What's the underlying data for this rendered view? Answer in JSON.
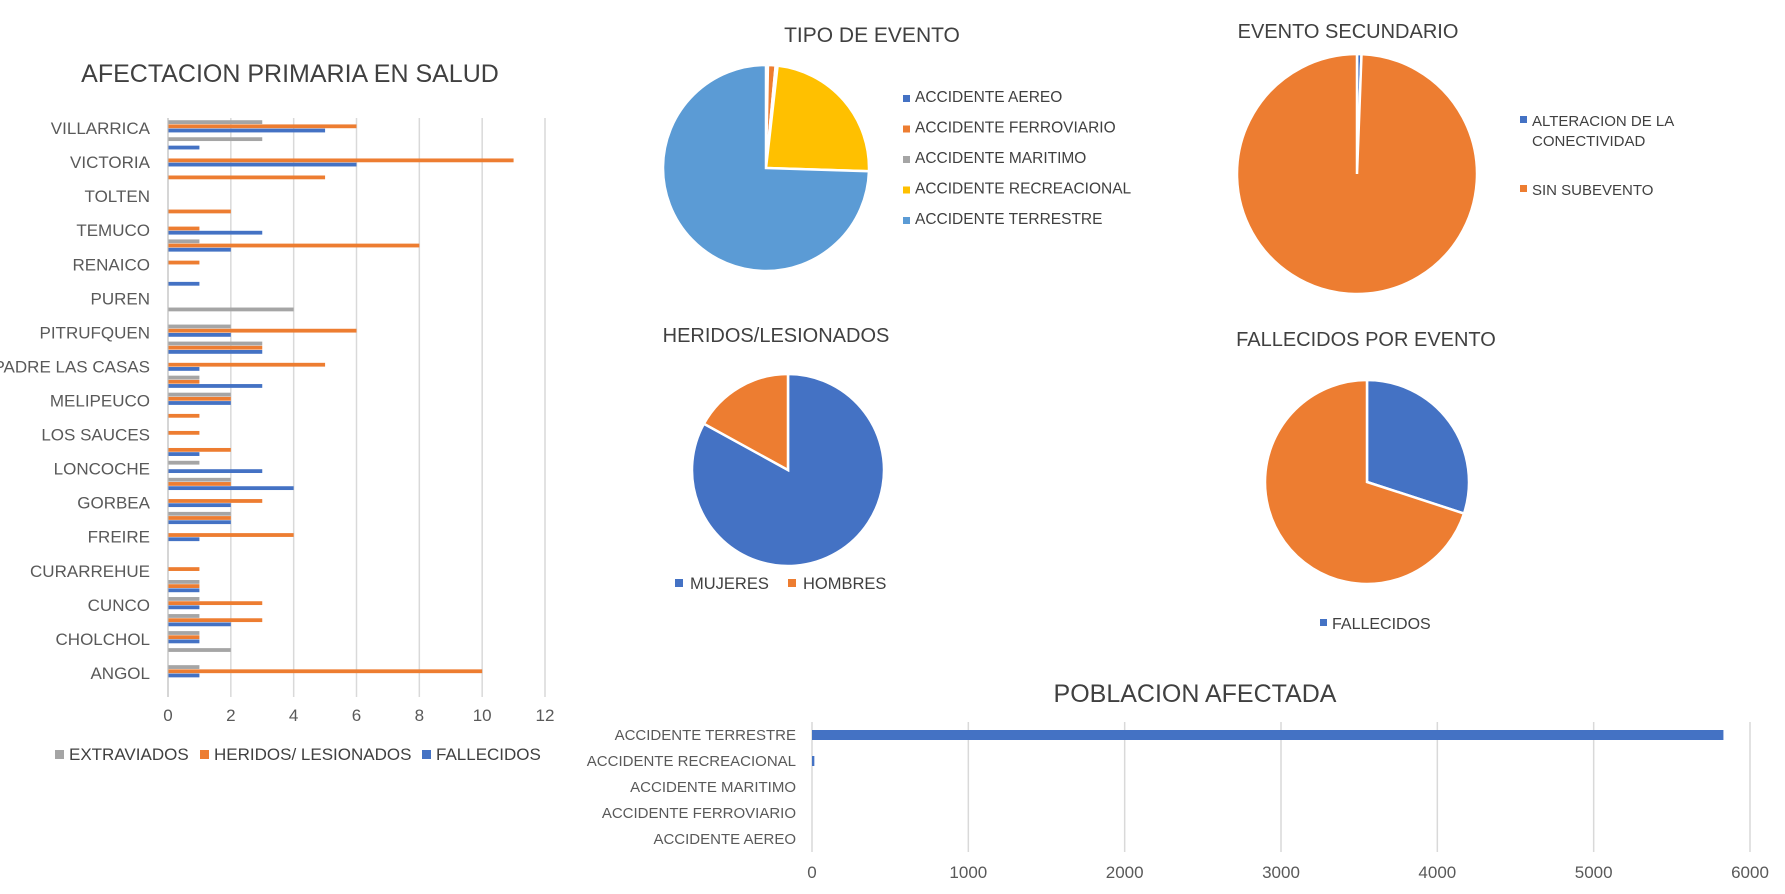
{
  "chart_data": [
    {
      "id": "salud",
      "type": "bar",
      "orientation": "horizontal",
      "title": "AFECTACION PRIMARIA EN SALUD",
      "categories": [
        "VILLARRICA",
        "VICTORIA",
        "TOLTEN",
        "TEMUCO",
        "RENAICO",
        "PUREN",
        "PITRUFQUEN",
        "PADRE LAS CASAS",
        "MELIPEUCO",
        "LOS SAUCES",
        "LONCOCHE",
        "GORBEA",
        "FREIRE",
        "CURARREHUE",
        "CUNCO",
        "CHOLCHOL",
        "ANGOL"
      ],
      "rows_per_category": 2,
      "row_values": [
        [
          [
            3,
            6,
            5
          ],
          [
            3,
            0,
            1
          ]
        ],
        [
          [
            0,
            11,
            6
          ],
          [
            0,
            5,
            0
          ]
        ],
        [
          [
            0,
            0,
            0
          ],
          [
            0,
            2,
            0
          ]
        ],
        [
          [
            0,
            1,
            3
          ],
          [
            1,
            8,
            2
          ]
        ],
        [
          [
            0,
            1,
            0
          ],
          [
            0,
            0,
            1
          ]
        ],
        [
          [
            0,
            0,
            0
          ],
          [
            4,
            0,
            0
          ]
        ],
        [
          [
            2,
            6,
            2
          ],
          [
            3,
            3,
            3
          ]
        ],
        [
          [
            0,
            5,
            1
          ],
          [
            1,
            1,
            3
          ]
        ],
        [
          [
            2,
            2,
            2
          ],
          [
            0,
            1,
            0
          ]
        ],
        [
          [
            0,
            1,
            0
          ],
          [
            0,
            2,
            1
          ]
        ],
        [
          [
            1,
            0,
            3
          ],
          [
            2,
            2,
            4
          ]
        ],
        [
          [
            0,
            3,
            2
          ],
          [
            2,
            2,
            2
          ]
        ],
        [
          [
            0,
            4,
            1
          ],
          [
            0,
            0,
            0
          ]
        ],
        [
          [
            0,
            1,
            0
          ],
          [
            1,
            1,
            1
          ]
        ],
        [
          [
            1,
            3,
            1
          ],
          [
            1,
            3,
            2
          ]
        ],
        [
          [
            1,
            1,
            1
          ],
          [
            2,
            0,
            0
          ]
        ],
        [
          [
            1,
            10,
            1
          ],
          [
            0,
            0,
            0
          ]
        ]
      ],
      "series": [
        {
          "name": "EXTRAVIADOS",
          "color": "#a5a5a5"
        },
        {
          "name": "HERIDOS/ LESIONADOS",
          "color": "#ed7d31"
        },
        {
          "name": "FALLECIDOS",
          "color": "#4472c4"
        }
      ],
      "xlim": [
        0,
        12
      ],
      "x_ticks": [
        "0",
        "2",
        "4",
        "6",
        "8",
        "10",
        "12"
      ],
      "legend": "bottom",
      "grid": true
    },
    {
      "id": "tipo",
      "type": "pie",
      "title": "TIPO DE EVENTO",
      "labels": [
        "ACCIDENTE AEREO",
        "ACCIDENTE FERROVIARIO",
        "ACCIDENTE MARITIMO",
        "ACCIDENTE RECREACIONAL",
        "ACCIDENTE TERRESTRE"
      ],
      "values": [
        0.3,
        1.2,
        0.3,
        23.7,
        74.5
      ],
      "colors": [
        "#4472c4",
        "#ed7d31",
        "#a5a5a5",
        "#ffc000",
        "#5b9bd5"
      ],
      "legend": "right"
    },
    {
      "id": "secundario",
      "type": "pie",
      "title": "EVENTO SECUNDARIO",
      "labels": [
        "ALTERACION DE LA CONECTIVIDAD",
        "SIN SUBEVENTO"
      ],
      "values": [
        0.6,
        99.4
      ],
      "colors": [
        "#4472c4",
        "#ed7d31"
      ],
      "legend": "right"
    },
    {
      "id": "heridos",
      "type": "pie",
      "title": "HERIDOS/LESIONADOS",
      "labels": [
        "MUJERES",
        "HOMBRES"
      ],
      "values": [
        83,
        17
      ],
      "colors": [
        "#4472c4",
        "#ed7d31"
      ],
      "legend": "bottom"
    },
    {
      "id": "fallecidos",
      "type": "pie",
      "title": "FALLECIDOS POR EVENTO",
      "labels": [
        "FALLECIDOS",
        ""
      ],
      "values": [
        30,
        70
      ],
      "colors": [
        "#4472c4",
        "#ed7d31"
      ],
      "legend": "bottom"
    },
    {
      "id": "poblacion",
      "type": "bar",
      "orientation": "horizontal",
      "title": "POBLACION AFECTADA",
      "categories": [
        "ACCIDENTE TERRESTRE",
        "ACCIDENTE RECREACIONAL",
        "ACCIDENTE MARITIMO",
        "ACCIDENTE FERROVIARIO",
        "ACCIDENTE AEREO"
      ],
      "values": [
        5830,
        15,
        0,
        0,
        0
      ],
      "color": "#4472c4",
      "xlim": [
        0,
        6000
      ],
      "x_ticks": [
        "0",
        "1000",
        "2000",
        "3000",
        "4000",
        "5000",
        "6000"
      ],
      "grid": true
    }
  ]
}
